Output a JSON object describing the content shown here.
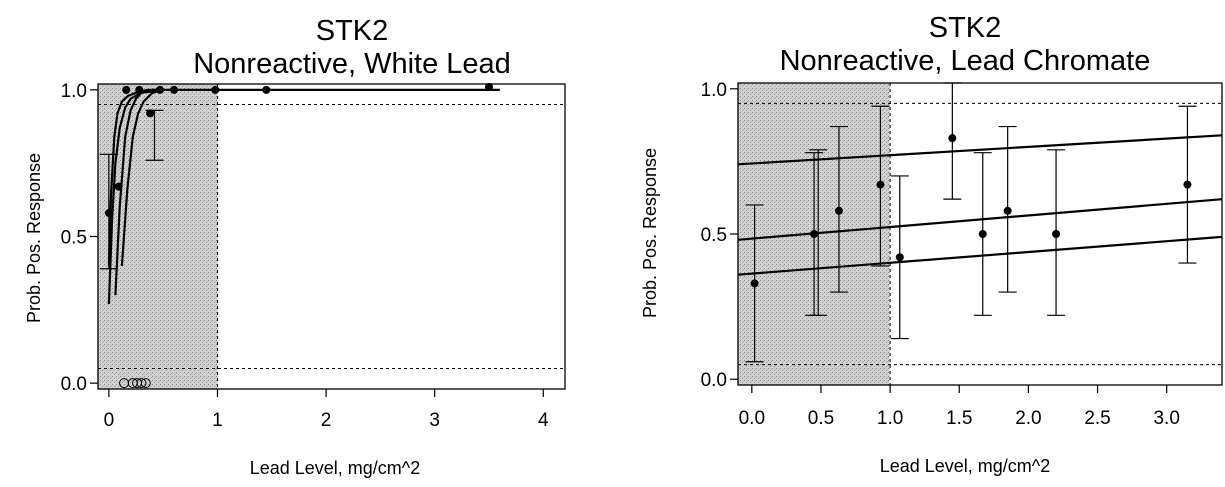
{
  "chart_data": [
    {
      "type": "scatter",
      "title": "STK2",
      "subtitle": "Nonreactive, White Lead",
      "xlabel": "Lead Level, mg/cm^2",
      "ylabel": "Prob. Pos. Response",
      "xlim": [
        -0.1,
        4.2
      ],
      "ylim": [
        -0.02,
        1.02
      ],
      "x_ticks": [
        0,
        1,
        2,
        3,
        4
      ],
      "y_ticks": [
        0.0,
        0.5,
        1.0
      ],
      "x_tick_labels": [
        "0",
        "1",
        "2",
        "3",
        "4"
      ],
      "y_tick_labels": [
        "0.0",
        "0.5",
        "1.0"
      ],
      "shaded_region_x": [
        -0.1,
        1.0
      ],
      "reference_lines": {
        "vertical_x": 1.0,
        "horizontal_y": [
          0.05,
          0.95
        ]
      },
      "positive_points": [
        {
          "x": 0.0,
          "y": 0.58
        },
        {
          "x": 0.09,
          "y": 0.67
        },
        {
          "x": 0.16,
          "y": 1.0
        },
        {
          "x": 0.28,
          "y": 1.0
        },
        {
          "x": 0.38,
          "y": 0.92
        },
        {
          "x": 0.47,
          "y": 1.0
        },
        {
          "x": 0.6,
          "y": 1.0
        },
        {
          "x": 0.98,
          "y": 1.0
        },
        {
          "x": 1.45,
          "y": 1.0
        },
        {
          "x": 3.5,
          "y": 1.01
        }
      ],
      "negative_points": [
        {
          "x": 0.14,
          "y": 0.0
        },
        {
          "x": 0.22,
          "y": 0.0
        },
        {
          "x": 0.26,
          "y": 0.0
        },
        {
          "x": 0.3,
          "y": 0.0
        },
        {
          "x": 0.34,
          "y": 0.0
        }
      ],
      "error_bars": [
        {
          "x": 0.0,
          "low": 0.39,
          "high": 0.78
        },
        {
          "x": 0.42,
          "low": 0.76,
          "high": 0.93
        }
      ],
      "curves": [
        {
          "x": [
            0.0,
            0.03,
            0.06,
            0.1,
            0.15,
            0.2,
            0.3,
            0.5,
            0.8,
            1.2,
            2.0,
            3.0,
            3.6
          ],
          "y": [
            0.27,
            0.56,
            0.75,
            0.87,
            0.94,
            0.97,
            0.99,
            1.0,
            1.0,
            1.0,
            1.0,
            1.0,
            1.0
          ]
        },
        {
          "x": [
            0.0,
            0.02,
            0.05,
            0.08,
            0.12,
            0.18,
            0.25,
            0.35,
            0.5
          ],
          "y": [
            0.4,
            0.64,
            0.84,
            0.92,
            0.96,
            0.98,
            0.99,
            1.0,
            1.0
          ]
        },
        {
          "x": [
            0.06,
            0.1,
            0.15,
            0.2,
            0.25,
            0.3,
            0.4,
            0.5
          ],
          "y": [
            0.3,
            0.6,
            0.84,
            0.93,
            0.97,
            0.99,
            1.0,
            1.0
          ]
        },
        {
          "x": [
            0.12,
            0.17,
            0.22,
            0.27,
            0.32,
            0.4,
            0.5
          ],
          "y": [
            0.4,
            0.66,
            0.84,
            0.92,
            0.96,
            0.99,
            1.0
          ]
        }
      ]
    },
    {
      "type": "scatter",
      "title": "STK2",
      "subtitle": "Nonreactive, Lead Chromate",
      "xlabel": "Lead Level, mg/cm^2",
      "ylabel": "Prob. Pos. Response",
      "xlim": [
        -0.1,
        3.4
      ],
      "ylim": [
        -0.02,
        1.02
      ],
      "x_ticks": [
        0.0,
        0.5,
        1.0,
        1.5,
        2.0,
        2.5,
        3.0
      ],
      "y_ticks": [
        0.0,
        0.5,
        1.0
      ],
      "x_tick_labels": [
        "0.0",
        "0.5",
        "1.0",
        "1.5",
        "2.0",
        "2.5",
        "3.0"
      ],
      "y_tick_labels": [
        "0.0",
        "0.5",
        "1.0"
      ],
      "shaded_region_x": [
        -0.1,
        1.0
      ],
      "reference_lines": {
        "vertical_x": 1.0,
        "horizontal_y": [
          0.05,
          0.95
        ]
      },
      "points": [
        {
          "x": 0.02,
          "y": 0.33
        },
        {
          "x": 0.45,
          "y": 0.5
        },
        {
          "x": 0.63,
          "y": 0.58
        },
        {
          "x": 0.93,
          "y": 0.67
        },
        {
          "x": 1.07,
          "y": 0.42
        },
        {
          "x": 1.45,
          "y": 0.83
        },
        {
          "x": 1.67,
          "y": 0.5
        },
        {
          "x": 1.85,
          "y": 0.58
        },
        {
          "x": 2.2,
          "y": 0.5
        },
        {
          "x": 3.15,
          "y": 0.67
        }
      ],
      "error_bars": [
        {
          "x": 0.02,
          "low": 0.06,
          "high": 0.6
        },
        {
          "x": 0.45,
          "low": 0.22,
          "high": 0.78
        },
        {
          "x": 0.48,
          "low": 0.22,
          "high": 0.79
        },
        {
          "x": 0.63,
          "low": 0.3,
          "high": 0.87
        },
        {
          "x": 0.93,
          "low": 0.39,
          "high": 0.94
        },
        {
          "x": 1.07,
          "low": 0.14,
          "high": 0.7
        },
        {
          "x": 1.45,
          "low": 0.62,
          "high": 1.02
        },
        {
          "x": 1.67,
          "low": 0.22,
          "high": 0.78
        },
        {
          "x": 1.85,
          "low": 0.3,
          "high": 0.87
        },
        {
          "x": 2.2,
          "low": 0.22,
          "high": 0.79
        },
        {
          "x": 3.15,
          "low": 0.4,
          "high": 0.94
        }
      ],
      "curves": [
        {
          "x": [
            -0.1,
            3.4
          ],
          "y": [
            0.74,
            0.84
          ]
        },
        {
          "x": [
            -0.1,
            3.4
          ],
          "y": [
            0.48,
            0.62
          ]
        },
        {
          "x": [
            -0.1,
            3.4
          ],
          "y": [
            0.36,
            0.49
          ]
        }
      ]
    }
  ]
}
